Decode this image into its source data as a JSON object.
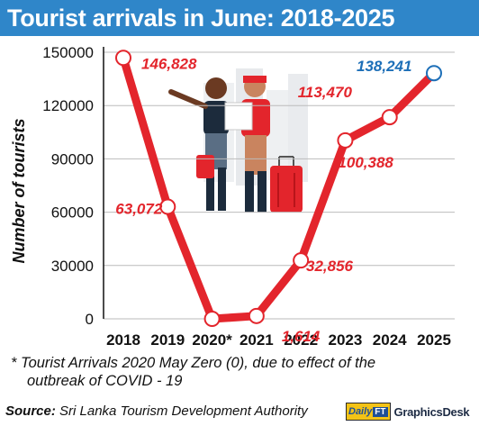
{
  "header": {
    "title": "Tourist arrivals in June: 2018-2025"
  },
  "chart_data": {
    "type": "line",
    "title": "Tourist arrivals in June: 2018-2025",
    "xlabel": "",
    "ylabel": "Number of tourists",
    "categories": [
      "2018",
      "2019",
      "2020*",
      "2021",
      "2022",
      "2023",
      "2024",
      "2025"
    ],
    "series": [
      {
        "values": [
          146828,
          63072,
          0,
          1614,
          32856,
          100388,
          113470,
          138241
        ]
      }
    ],
    "data_labels": [
      "146,828",
      "63,072",
      "",
      "1,614",
      "32,856",
      "100,388",
      "113,470",
      "138,241"
    ],
    "ylim": [
      0,
      150000
    ],
    "yticks": [
      "0",
      "30000",
      "60000",
      "90000",
      "120000",
      "150000"
    ],
    "grid": true,
    "colors": {
      "line": "#e3252c",
      "highlight": "#1d6fb8",
      "grid": "#bbbbbb",
      "title_bg": "#2f86c9"
    }
  },
  "footer": {
    "note_line1": "* Tourist Arrivals 2020 May Zero (0), due to effect of the",
    "note_line2": "outbreak of COVID - 19",
    "source_label": "Source:",
    "source_text": "Sri Lanka Tourism Development Authority",
    "brand_daily": "Daily",
    "brand_ft": "FT",
    "brand_desk": "GraphicsDesk"
  }
}
